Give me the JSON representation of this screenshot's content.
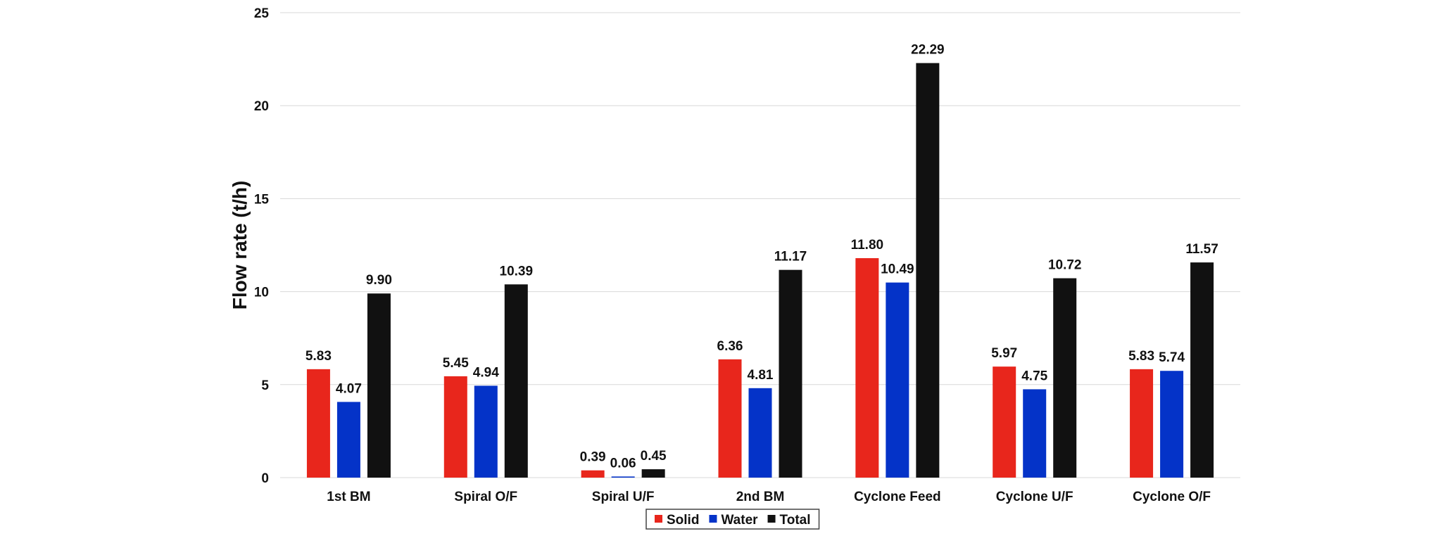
{
  "chart_data": {
    "type": "bar",
    "title": "",
    "xlabel": "",
    "ylabel": "Flow rate (t/h)",
    "ylim": [
      0,
      25
    ],
    "yticks": [
      0,
      5,
      10,
      15,
      20,
      25
    ],
    "grid": true,
    "legend_position": "bottom",
    "categories": [
      "1st BM",
      "Spiral O/F",
      "Spiral U/F",
      "2nd BM",
      "Cyclone Feed",
      "Cyclone U/F",
      "Cyclone O/F"
    ],
    "series": [
      {
        "name": "Solid",
        "color": "#e8261c",
        "values": [
          5.83,
          5.45,
          0.39,
          6.36,
          11.8,
          5.97,
          5.83
        ],
        "labels": [
          "5.83",
          "5.45",
          "0.39",
          "6.36",
          "11.80",
          "5.97",
          "5.83"
        ]
      },
      {
        "name": "Water",
        "color": "#0433c8",
        "values": [
          4.07,
          4.94,
          0.06,
          4.81,
          10.49,
          4.75,
          5.74
        ],
        "labels": [
          "4.07",
          "4.94",
          "0.06",
          "4.81",
          "10.49",
          "4.75",
          "5.74"
        ]
      },
      {
        "name": "Total",
        "color": "#111111",
        "values": [
          9.9,
          10.39,
          0.45,
          11.17,
          22.29,
          10.72,
          11.57
        ],
        "labels": [
          "9.90",
          "10.39",
          "0.45",
          "11.17",
          "22.29",
          "10.72",
          "11.57"
        ]
      }
    ]
  }
}
